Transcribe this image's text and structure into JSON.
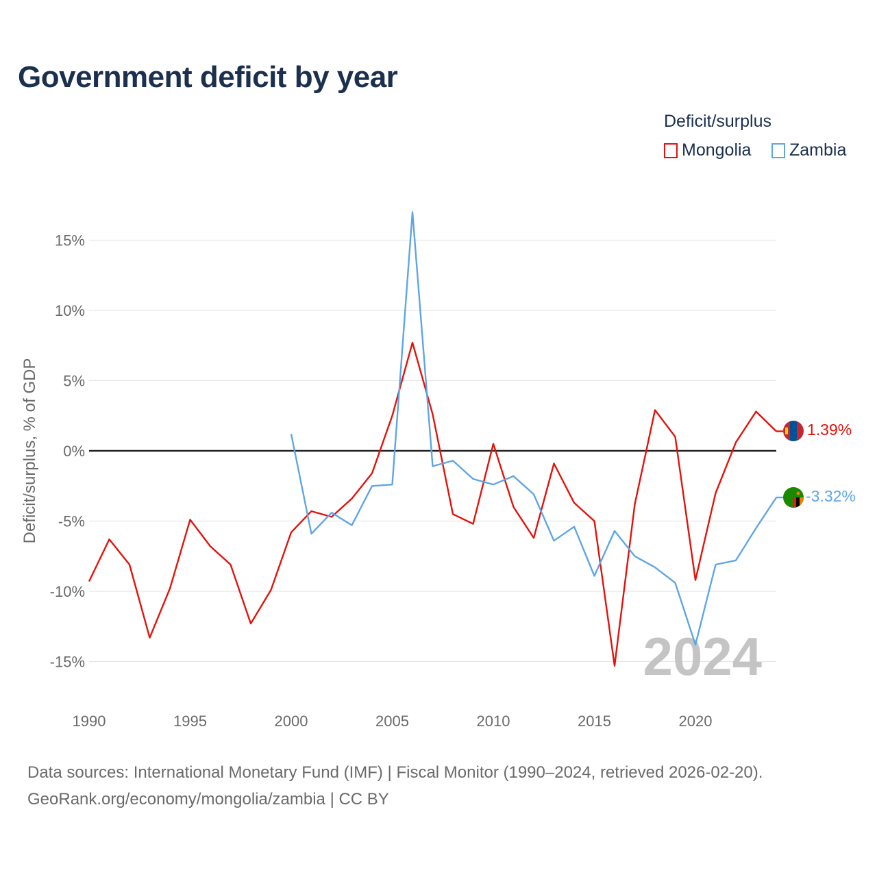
{
  "title": "Government deficit by year",
  "legend": {
    "title": "Deficit/surplus",
    "items": [
      {
        "label": "Mongolia",
        "color": "#e3120b"
      },
      {
        "label": "Zambia",
        "color": "#5fa5e6"
      }
    ]
  },
  "source": {
    "line1": "Data sources: International Monetary Fund (IMF) | Fiscal Monitor (1990–2024, retrieved 2026-02-20).",
    "line2": "GeoRank.org/economy/mongolia/zambia | CC BY"
  },
  "chart_data": {
    "type": "line",
    "title": "Government deficit by year",
    "ylabel": "Deficit/surplus, % of GDP",
    "xlabel": "",
    "xlim": [
      1990,
      2024
    ],
    "ylim": [
      -18,
      18
    ],
    "x_ticks": [
      "1990",
      "1995",
      "2000",
      "2005",
      "2010",
      "2015",
      "2020"
    ],
    "y_ticks": [
      "15%",
      "10%",
      "5%",
      "0%",
      "-5%",
      "-10%",
      "-15%"
    ],
    "y_tick_values": [
      15,
      10,
      5,
      0,
      -5,
      -10,
      -15
    ],
    "year_watermark": "2024",
    "series": [
      {
        "name": "Mongolia",
        "color": "#e3120b",
        "end_label": "1.39%",
        "x": [
          1990,
          1991,
          1992,
          1993,
          1994,
          1995,
          1996,
          1997,
          1998,
          1999,
          2000,
          2001,
          2002,
          2003,
          2004,
          2005,
          2006,
          2007,
          2008,
          2009,
          2010,
          2011,
          2012,
          2013,
          2014,
          2015,
          2016,
          2017,
          2018,
          2019,
          2020,
          2021,
          2022,
          2023,
          2024
        ],
        "values": [
          -9.3,
          -6.3,
          -8.1,
          -13.3,
          -9.8,
          -4.9,
          -6.8,
          -8.1,
          -12.3,
          -9.9,
          -5.8,
          -4.3,
          -4.7,
          -3.4,
          -1.6,
          2.5,
          7.7,
          2.6,
          -4.5,
          -5.2,
          0.5,
          -4.0,
          -6.2,
          -0.9,
          -3.7,
          -5.0,
          -15.3,
          -3.8,
          2.9,
          1.0,
          -9.2,
          -3.0,
          0.6,
          2.8,
          1.39
        ]
      },
      {
        "name": "Zambia",
        "color": "#5fa5e6",
        "end_label": "-3.32%",
        "x": [
          2000,
          2001,
          2002,
          2003,
          2004,
          2005,
          2006,
          2007,
          2008,
          2009,
          2010,
          2011,
          2012,
          2013,
          2014,
          2015,
          2016,
          2017,
          2018,
          2019,
          2020,
          2021,
          2022,
          2023,
          2024
        ],
        "values": [
          1.2,
          -5.9,
          -4.4,
          -5.3,
          -2.5,
          -2.4,
          17.0,
          -1.1,
          -0.7,
          -2.0,
          -2.4,
          -1.8,
          -3.1,
          -6.4,
          -5.4,
          -8.9,
          -5.7,
          -7.5,
          -8.3,
          -9.4,
          -13.8,
          -8.1,
          -7.8,
          -5.5,
          -3.32
        ]
      }
    ]
  }
}
